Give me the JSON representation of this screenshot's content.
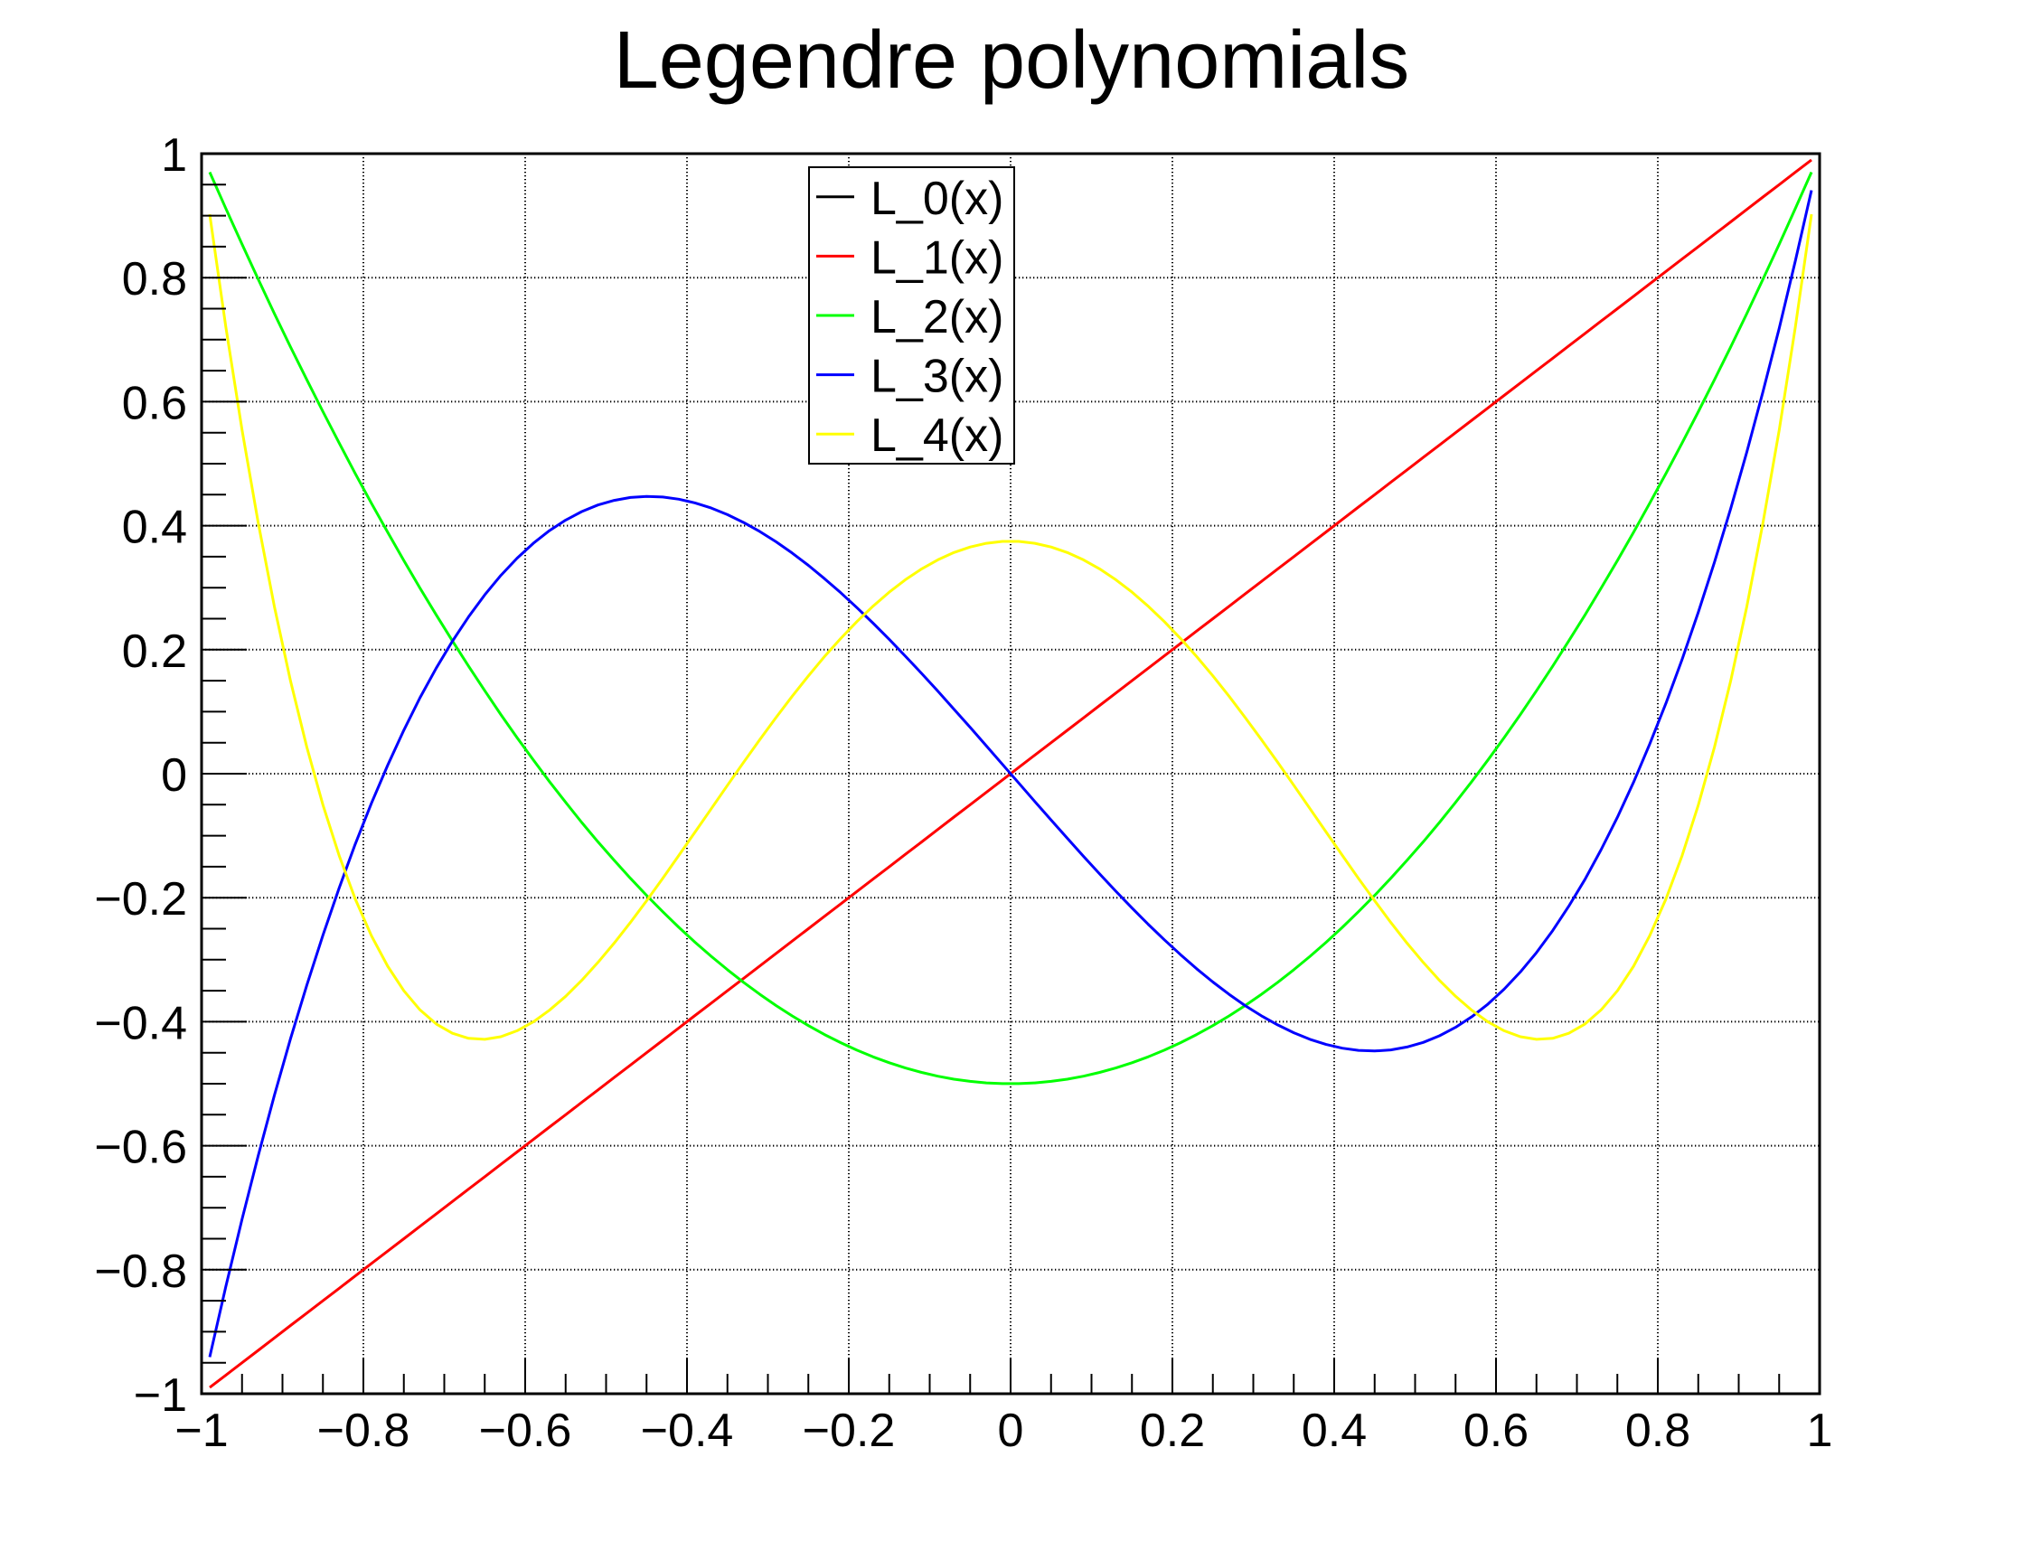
{
  "chart_data": {
    "type": "line",
    "title": "Legendre polynomials",
    "xlabel": "",
    "ylabel": "",
    "xlim": [
      -1,
      1
    ],
    "ylim": [
      -1,
      1
    ],
    "x_major_ticks": [
      -1,
      -0.8,
      -0.6,
      -0.4,
      -0.2,
      0,
      0.2,
      0.4,
      0.6,
      0.8,
      1
    ],
    "y_major_ticks": [
      1,
      0.8,
      0.6,
      0.4,
      0.2,
      0,
      -0.2,
      -0.4,
      -0.6,
      -0.8,
      -1
    ],
    "x_tick_labels": [
      "−1",
      "−0.8",
      "−0.6",
      "−0.4",
      "−0.2",
      "0",
      "0.2",
      "0.4",
      "0.6",
      "0.8",
      "1"
    ],
    "y_tick_labels": [
      "1",
      "0.8",
      "0.6",
      "0.4",
      "0.2",
      "0",
      "−0.2",
      "−0.4",
      "−0.6",
      "−0.8",
      "−1"
    ],
    "minor_tick_step": 0.05,
    "grid": {
      "on": true,
      "style": "dotted",
      "color": "#000000"
    },
    "frame_color": "#000000",
    "background_color": "#ffffff",
    "sampling": {
      "x_start": -0.99,
      "x_step": 0.02,
      "points": 100
    },
    "series": [
      {
        "name": "L_0(x)",
        "color": "#000000",
        "poly_coeffs": [
          1
        ]
      },
      {
        "name": "L_1(x)",
        "color": "#ff0000",
        "poly_coeffs": [
          0,
          1
        ]
      },
      {
        "name": "L_2(x)",
        "color": "#00ff00",
        "poly_coeffs": [
          -0.5,
          0,
          1.5
        ]
      },
      {
        "name": "L_3(x)",
        "color": "#0000ff",
        "poly_coeffs": [
          0,
          -1.5,
          0,
          2.5
        ]
      },
      {
        "name": "L_4(x)",
        "color": "#ffff00",
        "poly_coeffs": [
          0.375,
          0,
          -3.75,
          0,
          4.375
        ]
      }
    ],
    "legend": {
      "position": "upper-middle-left",
      "entries": [
        {
          "label": "L_0(x)",
          "color": "#000000"
        },
        {
          "label": "L_1(x)",
          "color": "#ff0000"
        },
        {
          "label": "L_2(x)",
          "color": "#00ff00"
        },
        {
          "label": "L_3(x)",
          "color": "#0000ff"
        },
        {
          "label": "L_4(x)",
          "color": "#ffff00"
        }
      ]
    }
  }
}
